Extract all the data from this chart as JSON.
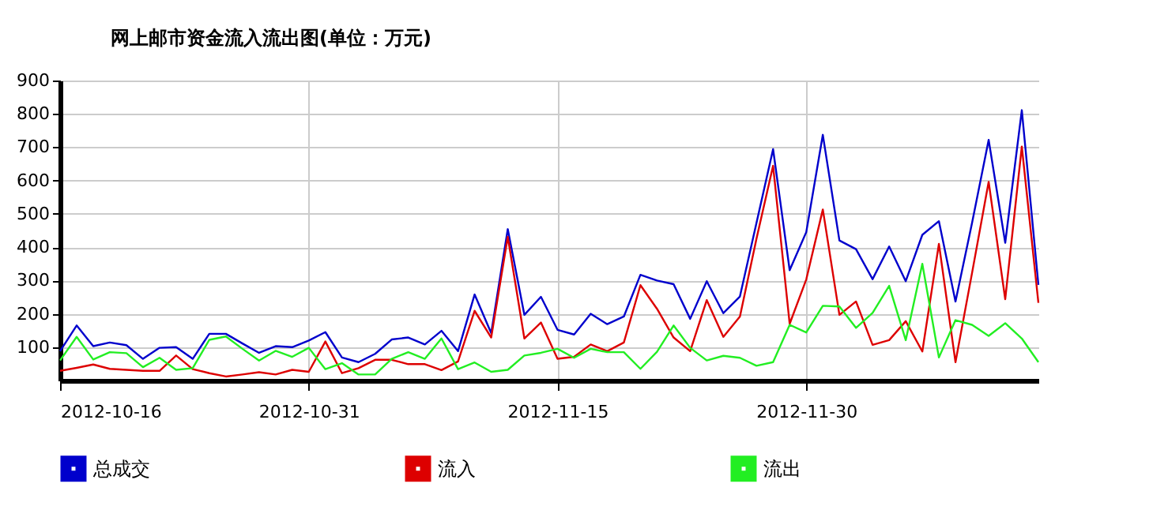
{
  "chart_data": {
    "type": "line",
    "title": "网上邮市资金流入流出图(单位：万元)",
    "x": [
      "2012-10-16",
      "2012-10-17",
      "2012-10-18",
      "2012-10-19",
      "2012-10-20",
      "2012-10-21",
      "2012-10-22",
      "2012-10-23",
      "2012-10-24",
      "2012-10-25",
      "2012-10-26",
      "2012-10-27",
      "2012-10-28",
      "2012-10-29",
      "2012-10-30",
      "2012-10-31",
      "2012-11-01",
      "2012-11-02",
      "2012-11-03",
      "2012-11-04",
      "2012-11-05",
      "2012-11-06",
      "2012-11-07",
      "2012-11-08",
      "2012-11-09",
      "2012-11-10",
      "2012-11-11",
      "2012-11-12",
      "2012-11-13",
      "2012-11-14",
      "2012-11-15",
      "2012-11-16",
      "2012-11-17",
      "2012-11-18",
      "2012-11-19",
      "2012-11-20",
      "2012-11-21",
      "2012-11-22",
      "2012-11-23",
      "2012-11-24",
      "2012-11-25",
      "2012-11-26",
      "2012-11-27",
      "2012-11-28",
      "2012-11-29",
      "2012-11-30",
      "2012-12-01",
      "2012-12-02",
      "2012-12-03",
      "2012-12-04",
      "2012-12-05",
      "2012-12-06",
      "2012-12-07",
      "2012-12-08",
      "2012-12-09",
      "2012-12-10",
      "2012-12-11",
      "2012-12-12",
      "2012-12-13",
      "2012-12-14"
    ],
    "series": [
      {
        "name": "总成交",
        "color": "#0000cc",
        "values": [
          88,
          165,
          103,
          114,
          106,
          65,
          98,
          100,
          65,
          140,
          140,
          111,
          83,
          103,
          100,
          120,
          145,
          69,
          55,
          80,
          123,
          129,
          108,
          149,
          88,
          258,
          142,
          454,
          197,
          251,
          152,
          138,
          200,
          169,
          192,
          317,
          300,
          289,
          185,
          298,
          202,
          252,
          473,
          694,
          331,
          445,
          737,
          420,
          394,
          304,
          402,
          298,
          437,
          478,
          237,
          473,
          722,
          413,
          811,
          287
        ]
      },
      {
        "name": "流入",
        "color": "#dd0000",
        "values": [
          29,
          38,
          48,
          35,
          32,
          29,
          29,
          75,
          34,
          22,
          12,
          18,
          25,
          18,
          32,
          26,
          117,
          22,
          37,
          62,
          62,
          49,
          49,
          31,
          57,
          209,
          129,
          431,
          126,
          174,
          65,
          71,
          108,
          88,
          114,
          286,
          215,
          129,
          88,
          241,
          131,
          192,
          426,
          644,
          170,
          303,
          513,
          197,
          237,
          107,
          121,
          178,
          87,
          410,
          55,
          323,
          596,
          244,
          702,
          233
        ]
      },
      {
        "name": "流出",
        "color": "#22ee22",
        "values": [
          60,
          131,
          63,
          85,
          82,
          40,
          68,
          32,
          37,
          122,
          132,
          95,
          60,
          89,
          71,
          98,
          34,
          52,
          18,
          18,
          65,
          85,
          65,
          126,
          34,
          54,
          26,
          32,
          75,
          83,
          95,
          68,
          95,
          85,
          85,
          35,
          86,
          165,
          98,
          60,
          74,
          68,
          44,
          55,
          167,
          144,
          224,
          222,
          158,
          203,
          284,
          121,
          350,
          69,
          181,
          167,
          134,
          172,
          126,
          55
        ]
      }
    ],
    "xlim": [
      "2012-10-16",
      "2012-12-14"
    ],
    "xticks": [
      "2012-10-16",
      "2012-10-31",
      "2012-11-15",
      "2012-11-30"
    ],
    "ylim": [
      0,
      900
    ],
    "yticks": [
      100,
      200,
      300,
      400,
      500,
      600,
      700,
      800,
      900
    ],
    "grid": true,
    "legend": "bottom",
    "marker": "none",
    "line_style": "solid"
  }
}
